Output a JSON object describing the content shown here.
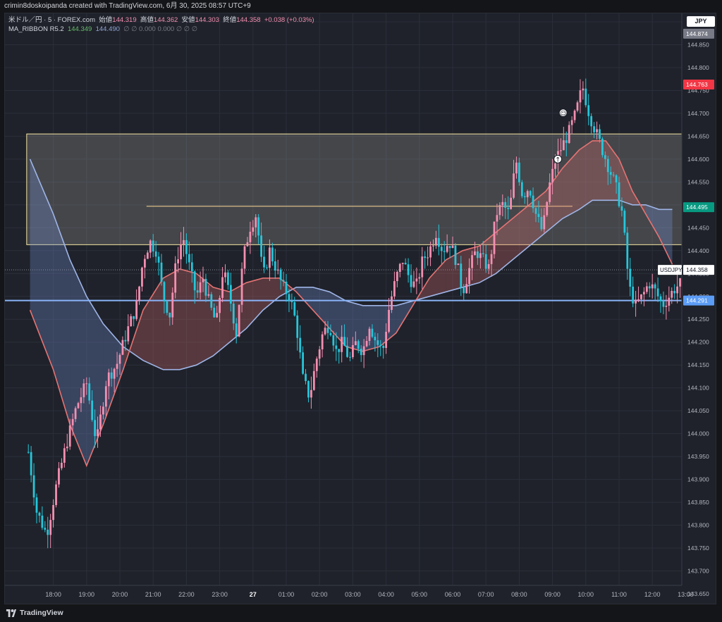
{
  "header": {
    "created_by": "crimin8doskoipanda created with TradingView.com, 6月 30, 2025 08:57 UTC+9"
  },
  "legend": {
    "symbol": "米ドル／円 · 5 · FOREX.com",
    "open_label": "始値",
    "open": "144.319",
    "high_label": "高値",
    "high": "144.362",
    "low_label": "安値",
    "low": "144.303",
    "close_label": "終値",
    "close": "144.358",
    "change": "+0.038 (+0.03%)",
    "indicator": "MA_RIBBON R5.2",
    "ind_v1": "144.349",
    "ind_v2": "144.490",
    "ind_rest": "∅  ∅  0.000  0.000  ∅  ∅  ∅"
  },
  "currency_button": "JPY",
  "footer": {
    "brand": "TradingView"
  },
  "colors": {
    "bg": "#1f222a",
    "up": "#f48fb1",
    "down": "#26c6da",
    "ma_fast": "#e57373",
    "ma_slow": "#9fb4e6",
    "zone": "#f5e6a3"
  },
  "chart_data": {
    "type": "candlestick",
    "symbol": "USDJPY",
    "timeframe": "5",
    "ylim": [
      143.65,
      144.9
    ],
    "y_ticks": [
      "144.900",
      "144.850",
      "144.800",
      "144.750",
      "144.700",
      "144.650",
      "144.600",
      "144.550",
      "144.500",
      "144.450",
      "144.400",
      "144.350",
      "144.300",
      "144.250",
      "144.200",
      "144.150",
      "144.100",
      "144.050",
      "144.000",
      "143.950",
      "143.900",
      "143.850",
      "143.800",
      "143.750",
      "143.700",
      "143.650"
    ],
    "x_ticks": [
      {
        "t": 0.5,
        "label": "18:00"
      },
      {
        "t": 1.5,
        "label": "19:00"
      },
      {
        "t": 2.5,
        "label": "20:00"
      },
      {
        "t": 3.5,
        "label": "21:00"
      },
      {
        "t": 4.5,
        "label": "22:00"
      },
      {
        "t": 5.5,
        "label": "23:00"
      },
      {
        "t": 6.5,
        "label": "27"
      },
      {
        "t": 7.5,
        "label": "01:00"
      },
      {
        "t": 8.5,
        "label": "02:00"
      },
      {
        "t": 9.5,
        "label": "03:00"
      },
      {
        "t": 10.5,
        "label": "04:00"
      },
      {
        "t": 11.5,
        "label": "05:00"
      },
      {
        "t": 12.5,
        "label": "06:00"
      },
      {
        "t": 13.5,
        "label": "07:00"
      },
      {
        "t": 14.5,
        "label": "08:00"
      },
      {
        "t": 15.5,
        "label": "09:00"
      },
      {
        "t": 16.5,
        "label": "10:00"
      },
      {
        "t": 17.5,
        "label": "11:00"
      },
      {
        "t": 18.5,
        "label": "12:00"
      },
      {
        "t": 19.5,
        "label": "13:00"
      }
    ],
    "price_labels": [
      {
        "value": 144.874,
        "text": "144.874",
        "color": "#787b86"
      },
      {
        "value": 144.763,
        "text": "144.763",
        "color": "#f23645"
      },
      {
        "value": 144.495,
        "text": "144.495",
        "color": "#089981"
      },
      {
        "value": 144.358,
        "text": "144.358",
        "color": "#ffffff",
        "tag": "USDJPY"
      },
      {
        "value": 144.291,
        "text": "144.291",
        "color": "#5b9cf6"
      }
    ],
    "zones": [
      {
        "from": 144.413,
        "to": 144.655,
        "x_from": -0.3,
        "x_to": 20.7
      },
      {
        "value": 144.497,
        "x_from": 3.3,
        "x_to": 16.1
      }
    ],
    "hline": 144.291,
    "last_price": 144.358,
    "ma_fast": [
      [
        -0.2,
        144.27
      ],
      [
        0.5,
        144.14
      ],
      [
        1.0,
        144.02
      ],
      [
        1.5,
        143.93
      ],
      [
        2.0,
        144.02
      ],
      [
        2.6,
        144.14
      ],
      [
        3.2,
        144.27
      ],
      [
        3.8,
        144.34
      ],
      [
        4.3,
        144.36
      ],
      [
        4.8,
        144.35
      ],
      [
        5.3,
        144.32
      ],
      [
        5.8,
        144.31
      ],
      [
        6.3,
        144.33
      ],
      [
        6.8,
        144.34
      ],
      [
        7.3,
        144.34
      ],
      [
        7.8,
        144.31
      ],
      [
        8.3,
        144.27
      ],
      [
        8.8,
        144.23
      ],
      [
        9.3,
        144.19
      ],
      [
        9.8,
        144.18
      ],
      [
        10.3,
        144.19
      ],
      [
        10.8,
        144.22
      ],
      [
        11.3,
        144.28
      ],
      [
        11.8,
        144.34
      ],
      [
        12.3,
        144.38
      ],
      [
        12.8,
        144.4
      ],
      [
        13.3,
        144.41
      ],
      [
        13.8,
        144.44
      ],
      [
        14.3,
        144.47
      ],
      [
        14.8,
        144.5
      ],
      [
        15.3,
        144.53
      ],
      [
        15.8,
        144.58
      ],
      [
        16.3,
        144.62
      ],
      [
        16.7,
        144.64
      ],
      [
        17.1,
        144.64
      ],
      [
        17.5,
        144.6
      ],
      [
        17.9,
        144.53
      ],
      [
        18.3,
        144.48
      ],
      [
        18.7,
        144.43
      ],
      [
        19.1,
        144.37
      ]
    ],
    "ma_slow": [
      [
        -0.2,
        144.6
      ],
      [
        0.5,
        144.48
      ],
      [
        1.0,
        144.38
      ],
      [
        1.5,
        144.3
      ],
      [
        2.0,
        144.24
      ],
      [
        2.6,
        144.19
      ],
      [
        3.2,
        144.16
      ],
      [
        3.8,
        144.14
      ],
      [
        4.3,
        144.14
      ],
      [
        4.8,
        144.15
      ],
      [
        5.3,
        144.17
      ],
      [
        5.8,
        144.2
      ],
      [
        6.3,
        144.23
      ],
      [
        6.8,
        144.27
      ],
      [
        7.3,
        144.3
      ],
      [
        7.8,
        144.32
      ],
      [
        8.3,
        144.32
      ],
      [
        8.8,
        144.31
      ],
      [
        9.3,
        144.29
      ],
      [
        9.8,
        144.28
      ],
      [
        10.3,
        144.28
      ],
      [
        10.8,
        144.28
      ],
      [
        11.3,
        144.29
      ],
      [
        11.8,
        144.3
      ],
      [
        12.3,
        144.31
      ],
      [
        12.8,
        144.32
      ],
      [
        13.3,
        144.33
      ],
      [
        13.8,
        144.35
      ],
      [
        14.3,
        144.38
      ],
      [
        14.8,
        144.41
      ],
      [
        15.3,
        144.44
      ],
      [
        15.8,
        144.47
      ],
      [
        16.3,
        144.49
      ],
      [
        16.7,
        144.51
      ],
      [
        17.1,
        144.51
      ],
      [
        17.5,
        144.51
      ],
      [
        17.9,
        144.5
      ],
      [
        18.3,
        144.5
      ],
      [
        18.7,
        144.49
      ],
      [
        19.1,
        144.49
      ]
    ],
    "markers": [
      {
        "t": 15.82,
        "value": 144.701,
        "symbol": "☺"
      },
      {
        "t": 15.66,
        "value": 144.6,
        "symbol": "↑"
      }
    ],
    "anchors": [
      [
        -0.25,
        143.96
      ],
      [
        0.0,
        143.83
      ],
      [
        0.3,
        143.78
      ],
      [
        0.6,
        143.89
      ],
      [
        0.9,
        143.98
      ],
      [
        1.2,
        144.06
      ],
      [
        1.5,
        144.11
      ],
      [
        1.8,
        143.98
      ],
      [
        2.1,
        144.12
      ],
      [
        2.4,
        144.15
      ],
      [
        2.7,
        144.22
      ],
      [
        3.0,
        144.28
      ],
      [
        3.2,
        144.38
      ],
      [
        3.4,
        144.42
      ],
      [
        3.6,
        144.4
      ],
      [
        3.8,
        144.3
      ],
      [
        4.0,
        144.26
      ],
      [
        4.2,
        144.38
      ],
      [
        4.4,
        144.43
      ],
      [
        4.6,
        144.36
      ],
      [
        4.8,
        144.3
      ],
      [
        5.0,
        144.34
      ],
      [
        5.2,
        144.28
      ],
      [
        5.4,
        144.24
      ],
      [
        5.6,
        144.36
      ],
      [
        5.8,
        144.3
      ],
      [
        6.0,
        144.22
      ],
      [
        6.2,
        144.38
      ],
      [
        6.4,
        144.45
      ],
      [
        6.6,
        144.48
      ],
      [
        6.8,
        144.34
      ],
      [
        7.0,
        144.4
      ],
      [
        7.2,
        144.36
      ],
      [
        7.4,
        144.32
      ],
      [
        7.6,
        144.3
      ],
      [
        7.8,
        144.24
      ],
      [
        8.0,
        144.12
      ],
      [
        8.2,
        144.08
      ],
      [
        8.4,
        144.16
      ],
      [
        8.6,
        144.22
      ],
      [
        8.8,
        144.24
      ],
      [
        9.0,
        144.18
      ],
      [
        9.2,
        144.2
      ],
      [
        9.4,
        144.16
      ],
      [
        9.6,
        144.2
      ],
      [
        9.8,
        144.18
      ],
      [
        10.0,
        144.24
      ],
      [
        10.2,
        144.2
      ],
      [
        10.4,
        144.18
      ],
      [
        10.6,
        144.28
      ],
      [
        10.8,
        144.34
      ],
      [
        11.0,
        144.38
      ],
      [
        11.2,
        144.34
      ],
      [
        11.4,
        144.32
      ],
      [
        11.6,
        144.38
      ],
      [
        11.8,
        144.4
      ],
      [
        12.0,
        144.44
      ],
      [
        12.2,
        144.4
      ],
      [
        12.4,
        144.42
      ],
      [
        12.6,
        144.38
      ],
      [
        12.8,
        144.31
      ],
      [
        13.0,
        144.36
      ],
      [
        13.2,
        144.4
      ],
      [
        13.4,
        144.38
      ],
      [
        13.6,
        144.36
      ],
      [
        13.8,
        144.48
      ],
      [
        14.0,
        144.5
      ],
      [
        14.2,
        144.48
      ],
      [
        14.4,
        144.6
      ],
      [
        14.6,
        144.52
      ],
      [
        14.8,
        144.54
      ],
      [
        15.0,
        144.48
      ],
      [
        15.2,
        144.44
      ],
      [
        15.4,
        144.54
      ],
      [
        15.6,
        144.6
      ],
      [
        15.8,
        144.63
      ],
      [
        16.0,
        144.66
      ],
      [
        16.2,
        144.7
      ],
      [
        16.4,
        144.76
      ],
      [
        16.6,
        144.7
      ],
      [
        16.8,
        144.66
      ],
      [
        17.0,
        144.62
      ],
      [
        17.2,
        144.58
      ],
      [
        17.4,
        144.54
      ],
      [
        17.6,
        144.48
      ],
      [
        17.8,
        144.32
      ],
      [
        18.0,
        144.28
      ],
      [
        18.2,
        144.3
      ],
      [
        18.4,
        144.33
      ],
      [
        18.6,
        144.31
      ],
      [
        18.8,
        144.28
      ],
      [
        19.0,
        144.3
      ],
      [
        19.2,
        144.32
      ],
      [
        19.4,
        144.33
      ],
      [
        19.58,
        144.358
      ]
    ]
  }
}
